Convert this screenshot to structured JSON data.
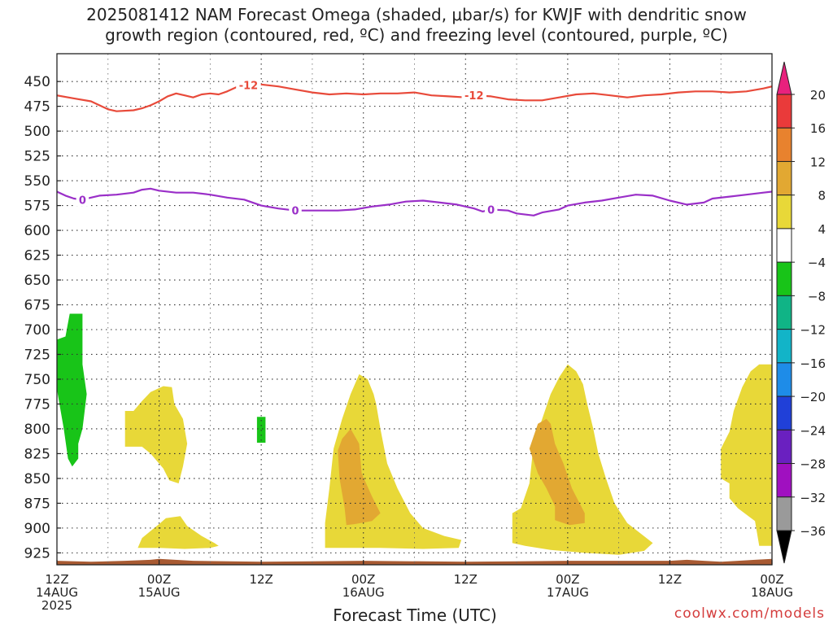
{
  "title": {
    "line1": "2025081412 NAM Forecast Omega (shaded, μbar/s) for KWJF with dendritic snow",
    "line2": "growth region (contoured, red, ºC) and freezing level (contoured, purple, ºC)"
  },
  "credit": "coolwx.com/models",
  "chart_data": {
    "type": "time-height cross-section",
    "xlabel": "Forecast Time (UTC)",
    "ylabel": "",
    "x_ticks": [
      {
        "hour": 0,
        "lines": [
          "12Z",
          "14AUG",
          "2025"
        ]
      },
      {
        "hour": 12,
        "lines": [
          "00Z",
          "15AUG"
        ]
      },
      {
        "hour": 24,
        "lines": [
          "12Z"
        ]
      },
      {
        "hour": 36,
        "lines": [
          "00Z",
          "16AUG"
        ]
      },
      {
        "hour": 48,
        "lines": [
          "12Z"
        ]
      },
      {
        "hour": 60,
        "lines": [
          "00Z",
          "17AUG"
        ]
      },
      {
        "hour": 72,
        "lines": [
          "12Z"
        ]
      },
      {
        "hour": 84,
        "lines": [
          "00Z",
          "18AUG"
        ]
      }
    ],
    "xlim_hours": [
      0,
      84
    ],
    "y_levels_hpa": [
      450,
      475,
      500,
      525,
      550,
      575,
      600,
      625,
      650,
      675,
      700,
      725,
      750,
      775,
      800,
      825,
      850,
      875,
      900,
      925
    ],
    "ylim_hpa": [
      422,
      937
    ],
    "grid": true,
    "colorbar": {
      "ticks": [
        "20",
        "16",
        "12",
        "8",
        "4",
        "−4",
        "−8",
        "−12",
        "−16",
        "−20",
        "−24",
        "−28",
        "−32",
        "−36"
      ],
      "colors": [
        "#e8217d",
        "#ea3a3a",
        "#e8822e",
        "#e2a832",
        "#e8d838",
        "#ffffff",
        "#18c418",
        "#10b486",
        "#12b4c8",
        "#1e8ce8",
        "#2040d8",
        "#6a20c0",
        "#a010c0",
        "#9a9a9a",
        "#000000"
      ]
    },
    "contours": [
      {
        "name": "-12",
        "color": "#e84a3a",
        "labels": [
          {
            "hour": 22.5,
            "value": "-12"
          },
          {
            "hour": 49,
            "value": "-12"
          }
        ],
        "points": [
          [
            0,
            464
          ],
          [
            2,
            467
          ],
          [
            4,
            470
          ],
          [
            5,
            474
          ],
          [
            6,
            478
          ],
          [
            7,
            480
          ],
          [
            9,
            479
          ],
          [
            10,
            477
          ],
          [
            11,
            474
          ],
          [
            12,
            470
          ],
          [
            13,
            465
          ],
          [
            14,
            462
          ],
          [
            15,
            464
          ],
          [
            16,
            466
          ],
          [
            17,
            463
          ],
          [
            18,
            462
          ],
          [
            19,
            463
          ],
          [
            20,
            460
          ],
          [
            21,
            456
          ],
          [
            22,
            454
          ],
          [
            24,
            453
          ],
          [
            26,
            455
          ],
          [
            28,
            458
          ],
          [
            30,
            461
          ],
          [
            32,
            463
          ],
          [
            34,
            462
          ],
          [
            36,
            463
          ],
          [
            38,
            462
          ],
          [
            40,
            462
          ],
          [
            42,
            461
          ],
          [
            44,
            464
          ],
          [
            46,
            465
          ],
          [
            48,
            466
          ],
          [
            49,
            464
          ],
          [
            51,
            465
          ],
          [
            53,
            468
          ],
          [
            55,
            469
          ],
          [
            57,
            469
          ],
          [
            59,
            466
          ],
          [
            61,
            463
          ],
          [
            63,
            462
          ],
          [
            65,
            464
          ],
          [
            67,
            466
          ],
          [
            69,
            464
          ],
          [
            71,
            463
          ],
          [
            73,
            461
          ],
          [
            75,
            460
          ],
          [
            77,
            460
          ],
          [
            79,
            461
          ],
          [
            81,
            460
          ],
          [
            83,
            457
          ],
          [
            84,
            455
          ]
        ]
      },
      {
        "name": "0",
        "color": "#9a2fc8",
        "labels": [
          {
            "hour": 3,
            "value": "0"
          },
          {
            "hour": 28,
            "value": "0"
          },
          {
            "hour": 51,
            "value": "0"
          }
        ],
        "points": [
          [
            0,
            561
          ],
          [
            1,
            565
          ],
          [
            2,
            568
          ],
          [
            3,
            569
          ],
          [
            4,
            567
          ],
          [
            5,
            565
          ],
          [
            7,
            564
          ],
          [
            9,
            562
          ],
          [
            10,
            559
          ],
          [
            11,
            558
          ],
          [
            12,
            560
          ],
          [
            14,
            562
          ],
          [
            16,
            562
          ],
          [
            18,
            564
          ],
          [
            20,
            567
          ],
          [
            22,
            569
          ],
          [
            24,
            575
          ],
          [
            26,
            578
          ],
          [
            28,
            580
          ],
          [
            31,
            580
          ],
          [
            33,
            580
          ],
          [
            35,
            579
          ],
          [
            37,
            576
          ],
          [
            39,
            574
          ],
          [
            41,
            571
          ],
          [
            43,
            570
          ],
          [
            45,
            572
          ],
          [
            47,
            574
          ],
          [
            49,
            578
          ],
          [
            50,
            581
          ],
          [
            51,
            579
          ],
          [
            53,
            580
          ],
          [
            54,
            583
          ],
          [
            56,
            585
          ],
          [
            57,
            582
          ],
          [
            59,
            579
          ],
          [
            60,
            575
          ],
          [
            62,
            572
          ],
          [
            64,
            570
          ],
          [
            66,
            567
          ],
          [
            68,
            564
          ],
          [
            70,
            565
          ],
          [
            72,
            570
          ],
          [
            74,
            574
          ],
          [
            76,
            572
          ],
          [
            77,
            568
          ],
          [
            79,
            566
          ],
          [
            81,
            564
          ],
          [
            83,
            562
          ],
          [
            84,
            561
          ]
        ]
      }
    ],
    "shaded_regions": [
      {
        "value_range": "-8 to -4",
        "color": "#18c418",
        "points": [
          [
            0,
            710
          ],
          [
            1,
            707
          ],
          [
            1.5,
            684
          ],
          [
            3,
            684
          ],
          [
            3,
            735
          ],
          [
            3.5,
            765
          ],
          [
            3,
            800
          ],
          [
            2.5,
            815
          ],
          [
            2.5,
            830
          ],
          [
            1.8,
            838
          ],
          [
            1.3,
            830
          ],
          [
            0.8,
            800
          ],
          [
            0.3,
            775
          ],
          [
            0,
            760
          ]
        ]
      },
      {
        "value_range": "-8 to -4",
        "color": "#18c418",
        "points": [
          [
            23.5,
            788
          ],
          [
            24.5,
            788
          ],
          [
            24.5,
            814
          ],
          [
            23.5,
            814
          ]
        ]
      },
      {
        "value_range": "4 to 8",
        "color": "#e8d838",
        "points": [
          [
            8,
            782
          ],
          [
            9,
            782
          ],
          [
            10,
            772
          ],
          [
            11,
            763
          ],
          [
            12.5,
            757
          ],
          [
            13.5,
            758
          ],
          [
            13.8,
            775
          ],
          [
            14.8,
            790
          ],
          [
            15.3,
            815
          ],
          [
            14.8,
            838
          ],
          [
            14.3,
            855
          ],
          [
            13.2,
            852
          ],
          [
            12.5,
            840
          ],
          [
            11,
            825
          ],
          [
            10,
            818
          ],
          [
            8,
            818
          ]
        ]
      },
      {
        "value_range": "4 to 8",
        "color": "#e8d838",
        "points": [
          [
            9.5,
            920
          ],
          [
            10,
            910
          ],
          [
            11,
            903
          ],
          [
            12,
            896
          ],
          [
            12.8,
            890
          ],
          [
            14.5,
            888
          ],
          [
            15.3,
            898
          ],
          [
            17,
            908
          ],
          [
            18.5,
            915
          ],
          [
            19,
            918
          ],
          [
            18,
            920
          ],
          [
            15,
            921
          ],
          [
            12,
            920
          ]
        ]
      },
      {
        "value_range": "4 to 8",
        "color": "#e8d838",
        "points": [
          [
            31.5,
            920
          ],
          [
            31.5,
            895
          ],
          [
            32,
            860
          ],
          [
            32.5,
            820
          ],
          [
            33.5,
            790
          ],
          [
            34.5,
            765
          ],
          [
            35.5,
            745
          ],
          [
            36.5,
            750
          ],
          [
            37.2,
            765
          ],
          [
            37.5,
            775
          ],
          [
            38,
            800
          ],
          [
            38.8,
            835
          ],
          [
            40,
            860
          ],
          [
            41.5,
            885
          ],
          [
            43,
            900
          ],
          [
            45.5,
            908
          ],
          [
            47.5,
            912
          ],
          [
            47.2,
            920
          ],
          [
            43,
            921
          ],
          [
            38,
            920
          ],
          [
            35,
            920
          ]
        ]
      },
      {
        "value_range": "8 to 12",
        "color": "#e2a832",
        "points": [
          [
            33,
            822
          ],
          [
            33.5,
            810
          ],
          [
            34.5,
            800
          ],
          [
            35.5,
            815
          ],
          [
            35.8,
            845
          ],
          [
            37,
            868
          ],
          [
            38,
            885
          ],
          [
            37,
            893
          ],
          [
            35,
            896
          ],
          [
            34,
            897
          ],
          [
            33.8,
            880
          ],
          [
            33.2,
            850
          ]
        ]
      },
      {
        "value_range": "4 to 8",
        "color": "#e8d838",
        "points": [
          [
            53.5,
            915
          ],
          [
            53.5,
            885
          ],
          [
            54.5,
            880
          ],
          [
            55.5,
            855
          ],
          [
            56,
            815
          ],
          [
            57,
            790
          ],
          [
            58,
            765
          ],
          [
            59,
            748
          ],
          [
            60,
            735
          ],
          [
            61,
            742
          ],
          [
            61.8,
            755
          ],
          [
            62.3,
            775
          ],
          [
            63,
            800
          ],
          [
            63.6,
            825
          ],
          [
            64.5,
            850
          ],
          [
            65.5,
            875
          ],
          [
            67,
            895
          ],
          [
            68.5,
            905
          ],
          [
            70,
            915
          ],
          [
            69,
            923
          ],
          [
            66,
            927
          ],
          [
            62,
            925
          ],
          [
            58,
            922
          ],
          [
            55,
            918
          ]
        ]
      },
      {
        "value_range": "8 to 12",
        "color": "#e2a832",
        "points": [
          [
            55.5,
            820
          ],
          [
            56.5,
            795
          ],
          [
            57.5,
            790
          ],
          [
            58,
            795
          ],
          [
            58.5,
            815
          ],
          [
            59.5,
            835
          ],
          [
            60.5,
            860
          ],
          [
            62,
            885
          ],
          [
            62,
            895
          ],
          [
            60.2,
            897
          ],
          [
            58.5,
            892
          ],
          [
            58.5,
            878
          ],
          [
            57.5,
            860
          ],
          [
            56.5,
            845
          ]
        ]
      },
      {
        "value_range": "4 to 8",
        "color": "#e8d838",
        "points": [
          [
            78,
            850
          ],
          [
            78,
            820
          ],
          [
            79,
            803
          ],
          [
            79.5,
            782
          ],
          [
            80.5,
            758
          ],
          [
            81.5,
            742
          ],
          [
            82.5,
            735
          ],
          [
            84,
            735
          ],
          [
            84,
            918
          ],
          [
            82.5,
            918
          ],
          [
            82,
            893
          ],
          [
            80,
            880
          ],
          [
            79,
            870
          ],
          [
            79,
            855
          ]
        ]
      }
    ],
    "terrain": {
      "color": "#a85a32",
      "top_hpa": [
        [
          0,
          933
        ],
        [
          4,
          934
        ],
        [
          8,
          933
        ],
        [
          11,
          932
        ],
        [
          12,
          931
        ],
        [
          16,
          933
        ],
        [
          24,
          934
        ],
        [
          36,
          933
        ],
        [
          48,
          934
        ],
        [
          60,
          933
        ],
        [
          72,
          933
        ],
        [
          74,
          932
        ],
        [
          76,
          933
        ],
        [
          78,
          934
        ],
        [
          80,
          933
        ],
        [
          82,
          932
        ],
        [
          84,
          931
        ]
      ]
    }
  }
}
